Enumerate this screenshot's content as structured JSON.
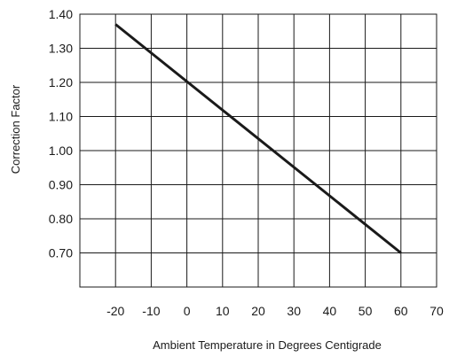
{
  "chart_data": {
    "type": "line",
    "title": "",
    "xlabel": "Ambient Temperature in Degrees Centigrade",
    "ylabel": "Correction Factor",
    "x_ticks": [
      "-20",
      "-10",
      "0",
      "10",
      "20",
      "30",
      "40",
      "50",
      "60",
      "70"
    ],
    "y_ticks": [
      "1.40",
      "1.30",
      "1.20",
      "1.10",
      "1.00",
      "0.90",
      "0.80",
      "0.70"
    ],
    "xlim": [
      -30,
      70
    ],
    "ylim": [
      0.6,
      1.4
    ],
    "grid": true,
    "series": [
      {
        "x": [
          -20,
          60
        ],
        "y": [
          1.37,
          0.7
        ]
      }
    ]
  }
}
